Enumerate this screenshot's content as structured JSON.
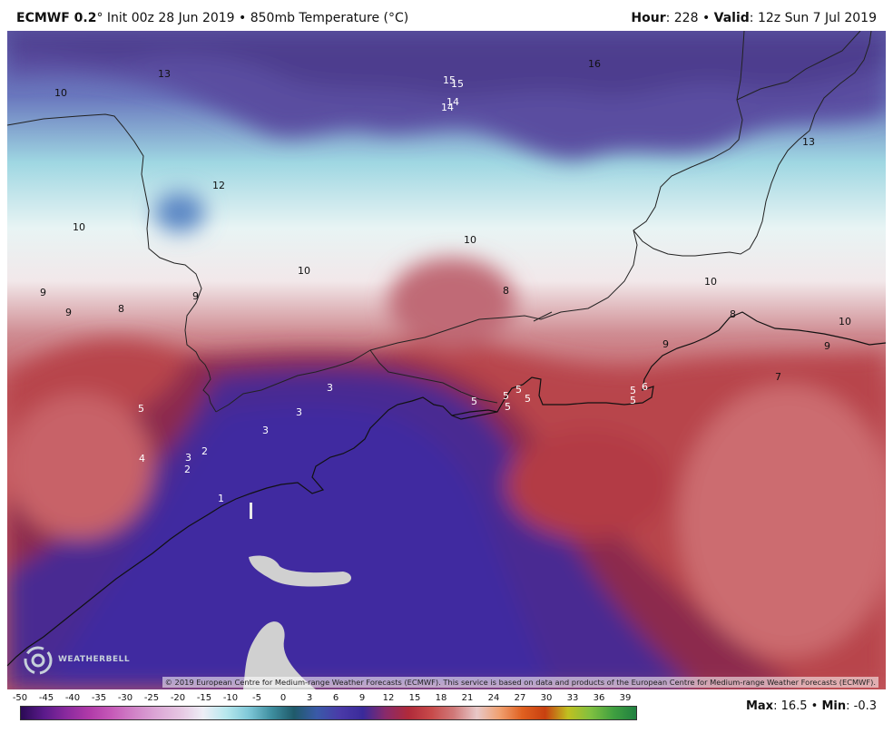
{
  "header": {
    "model": "ECMWF 0.2",
    "title_rest": "° Init 00z 28 Jun 2019 • 850mb Temperature (°C)",
    "hour_label": "Hour",
    "hour_value": ": 228 • ",
    "valid_label": "Valid",
    "valid_value": ": 12z Sun 7 Jul 2019"
  },
  "credit": "© 2019 European Centre for Medium-range Weather Forecasts (ECMWF). This service is based on data and products of the European Centre for Medium-range Weather Forecasts (ECMWF).",
  "logo_text": "WEATHERBELL",
  "legend": {
    "ticks": [
      "-50",
      "-45",
      "-40",
      "-35",
      "-30",
      "-25",
      "-20",
      "-15",
      "-10",
      "-5",
      "0",
      "3",
      "6",
      "9",
      "12",
      "15",
      "18",
      "21",
      "24",
      "27",
      "30",
      "33",
      "36",
      "39"
    ],
    "colors": [
      "#2a0a55",
      "#5a1a8a",
      "#8a2a9e",
      "#b03aa8",
      "#c65ab8",
      "#d184c8",
      "#dca8d6",
      "#e6c6e2",
      "#eeeef6",
      "#b8e8ee",
      "#7fc8d8",
      "#3f8fa0",
      "#1f5a6a",
      "#3a5aa8",
      "#4a3aa8",
      "#3a2a9a",
      "#8a2a6a",
      "#b02a3a",
      "#c84a4a",
      "#d07a7a",
      "#e8c8c8",
      "#f0a070",
      "#e06020",
      "#c84010",
      "#c0c020",
      "#80c040",
      "#40a040",
      "#208040"
    ],
    "max_label": "Max",
    "max_value": ": 16.5 • ",
    "min_label": "Min",
    "min_value": ": -0.3"
  },
  "contour_labels": [
    {
      "text": "13",
      "color": "dark"
    },
    {
      "text": "10",
      "color": "dark"
    },
    {
      "text": "15",
      "color": "light"
    },
    {
      "text": "15",
      "color": "light"
    },
    {
      "text": "14",
      "color": "light"
    },
    {
      "text": "14",
      "color": "light"
    },
    {
      "text": "16",
      "color": "dark"
    },
    {
      "text": "13",
      "color": "dark"
    },
    {
      "text": "12",
      "color": "dark"
    },
    {
      "text": "10",
      "color": "dark"
    },
    {
      "text": "10",
      "color": "dark"
    },
    {
      "text": "10",
      "color": "dark"
    },
    {
      "text": "9",
      "color": "dark"
    },
    {
      "text": "9",
      "color": "dark"
    },
    {
      "text": "8",
      "color": "dark"
    },
    {
      "text": "9",
      "color": "dark"
    },
    {
      "text": "8",
      "color": "dark"
    },
    {
      "text": "10",
      "color": "dark"
    },
    {
      "text": "8",
      "color": "dark"
    },
    {
      "text": "10",
      "color": "dark"
    },
    {
      "text": "9",
      "color": "dark"
    },
    {
      "text": "9",
      "color": "dark"
    },
    {
      "text": "7",
      "color": "dark"
    },
    {
      "text": "3",
      "color": "light"
    },
    {
      "text": "3",
      "color": "light"
    },
    {
      "text": "3",
      "color": "light"
    },
    {
      "text": "5",
      "color": "light"
    },
    {
      "text": "4",
      "color": "light"
    },
    {
      "text": "3",
      "color": "light"
    },
    {
      "text": "2",
      "color": "light"
    },
    {
      "text": "2",
      "color": "light"
    },
    {
      "text": "1",
      "color": "light"
    },
    {
      "text": "5",
      "color": "light"
    },
    {
      "text": "5",
      "color": "light"
    },
    {
      "text": "5",
      "color": "light"
    },
    {
      "text": "5",
      "color": "light"
    },
    {
      "text": "5",
      "color": "light"
    },
    {
      "text": "5",
      "color": "light"
    },
    {
      "text": "5",
      "color": "light"
    },
    {
      "text": "6",
      "color": "light"
    }
  ]
}
